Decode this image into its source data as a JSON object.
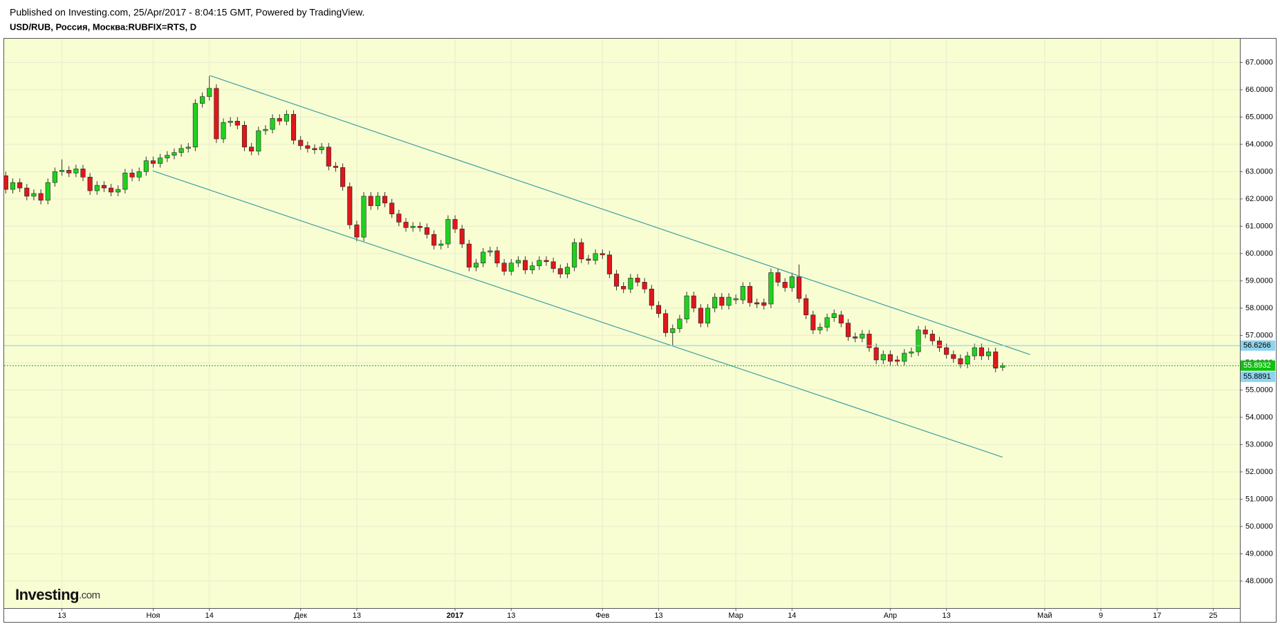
{
  "chart_data": {
    "type": "candlestick",
    "published": "Published on Investing.com, 25/Apr/2017 - 8:04:15 GMT, Powered by TradingView.",
    "title": "USD/RUB, Россия, Москва:RUBFIX=RTS, D",
    "logo": {
      "name": "Investing",
      "suffix": ".com"
    },
    "up_color": "#1ed21e",
    "down_color": "#e0161b",
    "background": "#f8fdd2",
    "grid": true,
    "ylim": [
      47.01,
      67.87
    ],
    "yticks": [
      {
        "value": 48,
        "label": "48.0000"
      },
      {
        "value": 49,
        "label": "49.0000"
      },
      {
        "value": 50,
        "label": "50.0000"
      },
      {
        "value": 51,
        "label": "51.0000"
      },
      {
        "value": 52,
        "label": "52.0000"
      },
      {
        "value": 53,
        "label": "53.0000"
      },
      {
        "value": 54,
        "label": "54.0000"
      },
      {
        "value": 55,
        "label": "55.0000"
      },
      {
        "value": 56,
        "label": "56.0000"
      },
      {
        "value": 57,
        "label": "57.0000"
      },
      {
        "value": 58,
        "label": "58.0000"
      },
      {
        "value": 59,
        "label": "59.0000"
      },
      {
        "value": 60,
        "label": "60.0000"
      },
      {
        "value": 61,
        "label": "61.0000"
      },
      {
        "value": 62,
        "label": "62.0000"
      },
      {
        "value": 63,
        "label": "63.0000"
      },
      {
        "value": 64,
        "label": "64.0000"
      },
      {
        "value": 65,
        "label": "65.0000"
      },
      {
        "value": 66,
        "label": "66.0000"
      },
      {
        "value": 67,
        "label": "67.0000"
      }
    ],
    "xlim": [
      -0.23,
      175.8
    ],
    "xticks": [
      {
        "value": 8,
        "label": "13"
      },
      {
        "value": 21,
        "label": "Ноя"
      },
      {
        "value": 29,
        "label": "14"
      },
      {
        "value": 42,
        "label": "Дек"
      },
      {
        "value": 50,
        "label": "13"
      },
      {
        "value": 64,
        "label": "2017"
      },
      {
        "value": 72,
        "label": "13"
      },
      {
        "value": 85,
        "label": "Фев"
      },
      {
        "value": 93,
        "label": "13"
      },
      {
        "value": 104,
        "label": "Мар"
      },
      {
        "value": 112,
        "label": "14"
      },
      {
        "value": 126,
        "label": "Апр"
      },
      {
        "value": 134,
        "label": "13"
      },
      {
        "value": 148,
        "label": "Май"
      },
      {
        "value": 156,
        "label": "9"
      },
      {
        "value": 164,
        "label": "17"
      },
      {
        "value": 172,
        "label": "25"
      }
    ],
    "open": [
      62.85,
      62.35,
      62.6,
      62.4,
      62.1,
      62.2,
      61.95,
      62.6,
      63.0,
      63.05,
      62.95,
      63.1,
      62.8,
      62.3,
      62.5,
      62.4,
      62.25,
      62.35,
      62.95,
      62.8,
      63.0,
      63.4,
      63.3,
      63.5,
      63.6,
      63.7,
      63.85,
      63.9,
      65.5,
      65.75,
      66.05,
      64.2,
      64.8,
      64.85,
      64.7,
      63.9,
      63.75,
      64.5,
      64.55,
      64.95,
      64.85,
      65.1,
      64.15,
      63.95,
      63.85,
      63.8,
      63.9,
      63.2,
      63.15,
      62.45,
      61.05,
      60.6,
      62.1,
      61.75,
      62.1,
      61.85,
      61.45,
      61.15,
      60.95,
      61.0,
      60.95,
      60.7,
      60.3,
      60.35,
      61.25,
      60.9,
      60.35,
      59.5,
      59.65,
      60.05,
      60.1,
      59.65,
      59.35,
      59.65,
      59.75,
      59.4,
      59.55,
      59.75,
      59.7,
      59.45,
      59.25,
      59.5,
      60.4,
      59.8,
      59.75,
      60.0,
      59.95,
      59.25,
      58.8,
      58.7,
      59.1,
      58.95,
      58.7,
      58.1,
      57.8,
      57.1,
      57.25,
      57.6,
      58.45,
      58.0,
      57.45,
      58.0,
      58.4,
      58.1,
      58.3,
      58.3,
      58.8,
      58.2,
      58.2,
      58.15,
      59.3,
      58.95,
      58.75,
      59.15,
      58.35,
      57.75,
      57.2,
      57.3,
      57.65,
      57.75,
      57.45,
      56.95,
      56.9,
      57.05,
      56.55,
      56.1,
      56.3,
      56.1,
      56.05,
      56.35,
      56.4,
      57.2,
      57.05,
      56.8,
      56.55,
      56.3,
      56.15,
      55.95,
      56.25,
      56.55,
      56.25,
      56.4,
      55.83
    ],
    "high": [
      63.0,
      62.75,
      62.75,
      62.55,
      62.35,
      62.35,
      62.75,
      63.15,
      63.45,
      63.2,
      63.25,
      63.25,
      62.95,
      62.65,
      62.65,
      62.55,
      62.5,
      63.1,
      63.1,
      63.15,
      63.55,
      63.55,
      63.65,
      63.75,
      63.85,
      64.0,
      64.05,
      65.65,
      65.9,
      66.5,
      66.2,
      64.95,
      65.0,
      65.0,
      64.85,
      64.05,
      64.65,
      64.7,
      65.1,
      65.1,
      65.25,
      65.25,
      64.3,
      64.1,
      64.0,
      64.05,
      64.05,
      63.35,
      63.3,
      62.6,
      61.2,
      62.25,
      62.25,
      62.25,
      62.25,
      62.0,
      61.6,
      61.3,
      61.15,
      61.15,
      61.1,
      60.85,
      60.5,
      61.4,
      61.4,
      61.05,
      60.5,
      59.8,
      60.2,
      60.25,
      60.25,
      59.8,
      59.8,
      59.9,
      59.9,
      59.7,
      59.9,
      59.9,
      59.85,
      59.6,
      59.65,
      60.55,
      60.55,
      59.95,
      60.15,
      60.15,
      60.1,
      59.4,
      58.95,
      59.25,
      59.25,
      59.1,
      58.85,
      58.25,
      57.95,
      57.4,
      57.75,
      58.6,
      58.6,
      58.15,
      58.15,
      58.55,
      58.55,
      58.55,
      58.5,
      58.95,
      58.95,
      58.35,
      58.35,
      59.45,
      59.45,
      59.1,
      59.3,
      59.6,
      58.5,
      57.9,
      57.45,
      57.8,
      57.95,
      57.9,
      57.6,
      57.1,
      57.2,
      57.2,
      56.7,
      56.45,
      56.45,
      56.25,
      56.5,
      56.55,
      57.35,
      57.35,
      57.2,
      56.95,
      56.7,
      56.45,
      56.3,
      56.4,
      56.7,
      56.7,
      56.55,
      56.55,
      56.0
    ],
    "low": [
      62.2,
      62.2,
      62.25,
      61.95,
      61.95,
      61.8,
      61.8,
      62.45,
      62.85,
      62.8,
      62.8,
      62.65,
      62.15,
      62.15,
      62.25,
      62.1,
      62.1,
      62.2,
      62.65,
      62.65,
      62.85,
      63.15,
      63.15,
      63.35,
      63.45,
      63.55,
      63.7,
      63.75,
      65.35,
      65.6,
      64.05,
      64.05,
      64.65,
      64.55,
      63.75,
      63.6,
      63.6,
      64.35,
      64.4,
      64.7,
      64.7,
      64.0,
      63.8,
      63.7,
      63.65,
      63.65,
      63.05,
      63.0,
      62.3,
      60.9,
      60.45,
      60.45,
      61.6,
      61.6,
      61.7,
      61.3,
      61.0,
      60.8,
      60.8,
      60.8,
      60.55,
      60.15,
      60.15,
      60.2,
      60.75,
      60.2,
      59.35,
      59.35,
      59.5,
      59.9,
      59.5,
      59.2,
      59.2,
      59.5,
      59.25,
      59.25,
      59.4,
      59.55,
      59.3,
      59.1,
      59.1,
      59.35,
      59.65,
      59.6,
      59.6,
      59.8,
      59.1,
      58.65,
      58.55,
      58.55,
      58.8,
      58.55,
      57.95,
      57.65,
      56.95,
      56.6,
      57.1,
      57.45,
      57.85,
      57.3,
      57.3,
      57.85,
      57.95,
      57.95,
      58.15,
      58.15,
      58.05,
      58.0,
      57.95,
      58.0,
      58.8,
      58.6,
      58.6,
      58.2,
      57.6,
      57.05,
      57.05,
      57.15,
      57.5,
      57.3,
      56.8,
      56.75,
      56.75,
      56.4,
      55.95,
      55.95,
      55.9,
      55.9,
      55.9,
      56.2,
      56.25,
      56.9,
      56.65,
      56.4,
      56.15,
      56.0,
      55.8,
      55.8,
      56.1,
      56.1,
      56.1,
      55.65,
      55.7
    ],
    "close": [
      62.35,
      62.6,
      62.4,
      62.1,
      62.2,
      61.95,
      62.6,
      63.0,
      63.05,
      62.95,
      63.1,
      62.8,
      62.3,
      62.5,
      62.4,
      62.25,
      62.35,
      62.95,
      62.8,
      63.0,
      63.4,
      63.3,
      63.5,
      63.6,
      63.7,
      63.85,
      63.9,
      65.5,
      65.75,
      66.05,
      64.2,
      64.8,
      64.85,
      64.7,
      63.9,
      63.75,
      64.5,
      64.55,
      64.95,
      64.85,
      65.1,
      64.15,
      63.95,
      63.85,
      63.8,
      63.9,
      63.2,
      63.15,
      62.45,
      61.05,
      60.6,
      62.1,
      61.75,
      62.1,
      61.85,
      61.45,
      61.15,
      60.95,
      61.0,
      60.95,
      60.7,
      60.3,
      60.35,
      61.25,
      60.9,
      60.35,
      59.5,
      59.65,
      60.05,
      60.1,
      59.65,
      59.35,
      59.65,
      59.75,
      59.4,
      59.55,
      59.75,
      59.7,
      59.45,
      59.25,
      59.5,
      60.4,
      59.8,
      59.75,
      60.0,
      59.95,
      59.25,
      58.8,
      58.7,
      59.1,
      58.95,
      58.7,
      58.1,
      57.8,
      57.1,
      57.25,
      57.6,
      58.45,
      58.0,
      57.45,
      58.0,
      58.4,
      58.1,
      58.4,
      58.35,
      58.8,
      58.2,
      58.15,
      58.1,
      59.3,
      58.95,
      58.75,
      59.15,
      58.35,
      57.75,
      57.2,
      57.3,
      57.65,
      57.8,
      57.45,
      56.95,
      56.9,
      57.05,
      56.55,
      56.1,
      56.3,
      56.05,
      56.05,
      56.35,
      56.4,
      57.2,
      57.05,
      56.8,
      56.55,
      56.3,
      56.15,
      55.95,
      56.25,
      56.55,
      56.25,
      56.4,
      55.8,
      55.8932
    ],
    "trendlines": [
      {
        "x": [
          29.07,
          145.9
        ],
        "y": [
          66.52,
          56.3
        ],
        "color": "#3a9fa0"
      },
      {
        "x": [
          20.93,
          141.98
        ],
        "y": [
          63.03,
          52.54
        ],
        "color": "#3a9fa0"
      }
    ],
    "hlines": [
      {
        "value": 56.6266,
        "color": "#7fcfe6",
        "style": "solid",
        "label_color": "#8fd3ec"
      },
      {
        "value": 55.8932,
        "color": "#16a316",
        "style": "dotted",
        "label_color": "#10c010"
      }
    ],
    "price_labels": [
      {
        "value": 55.8891,
        "color": "#8fd3ec"
      }
    ]
  }
}
